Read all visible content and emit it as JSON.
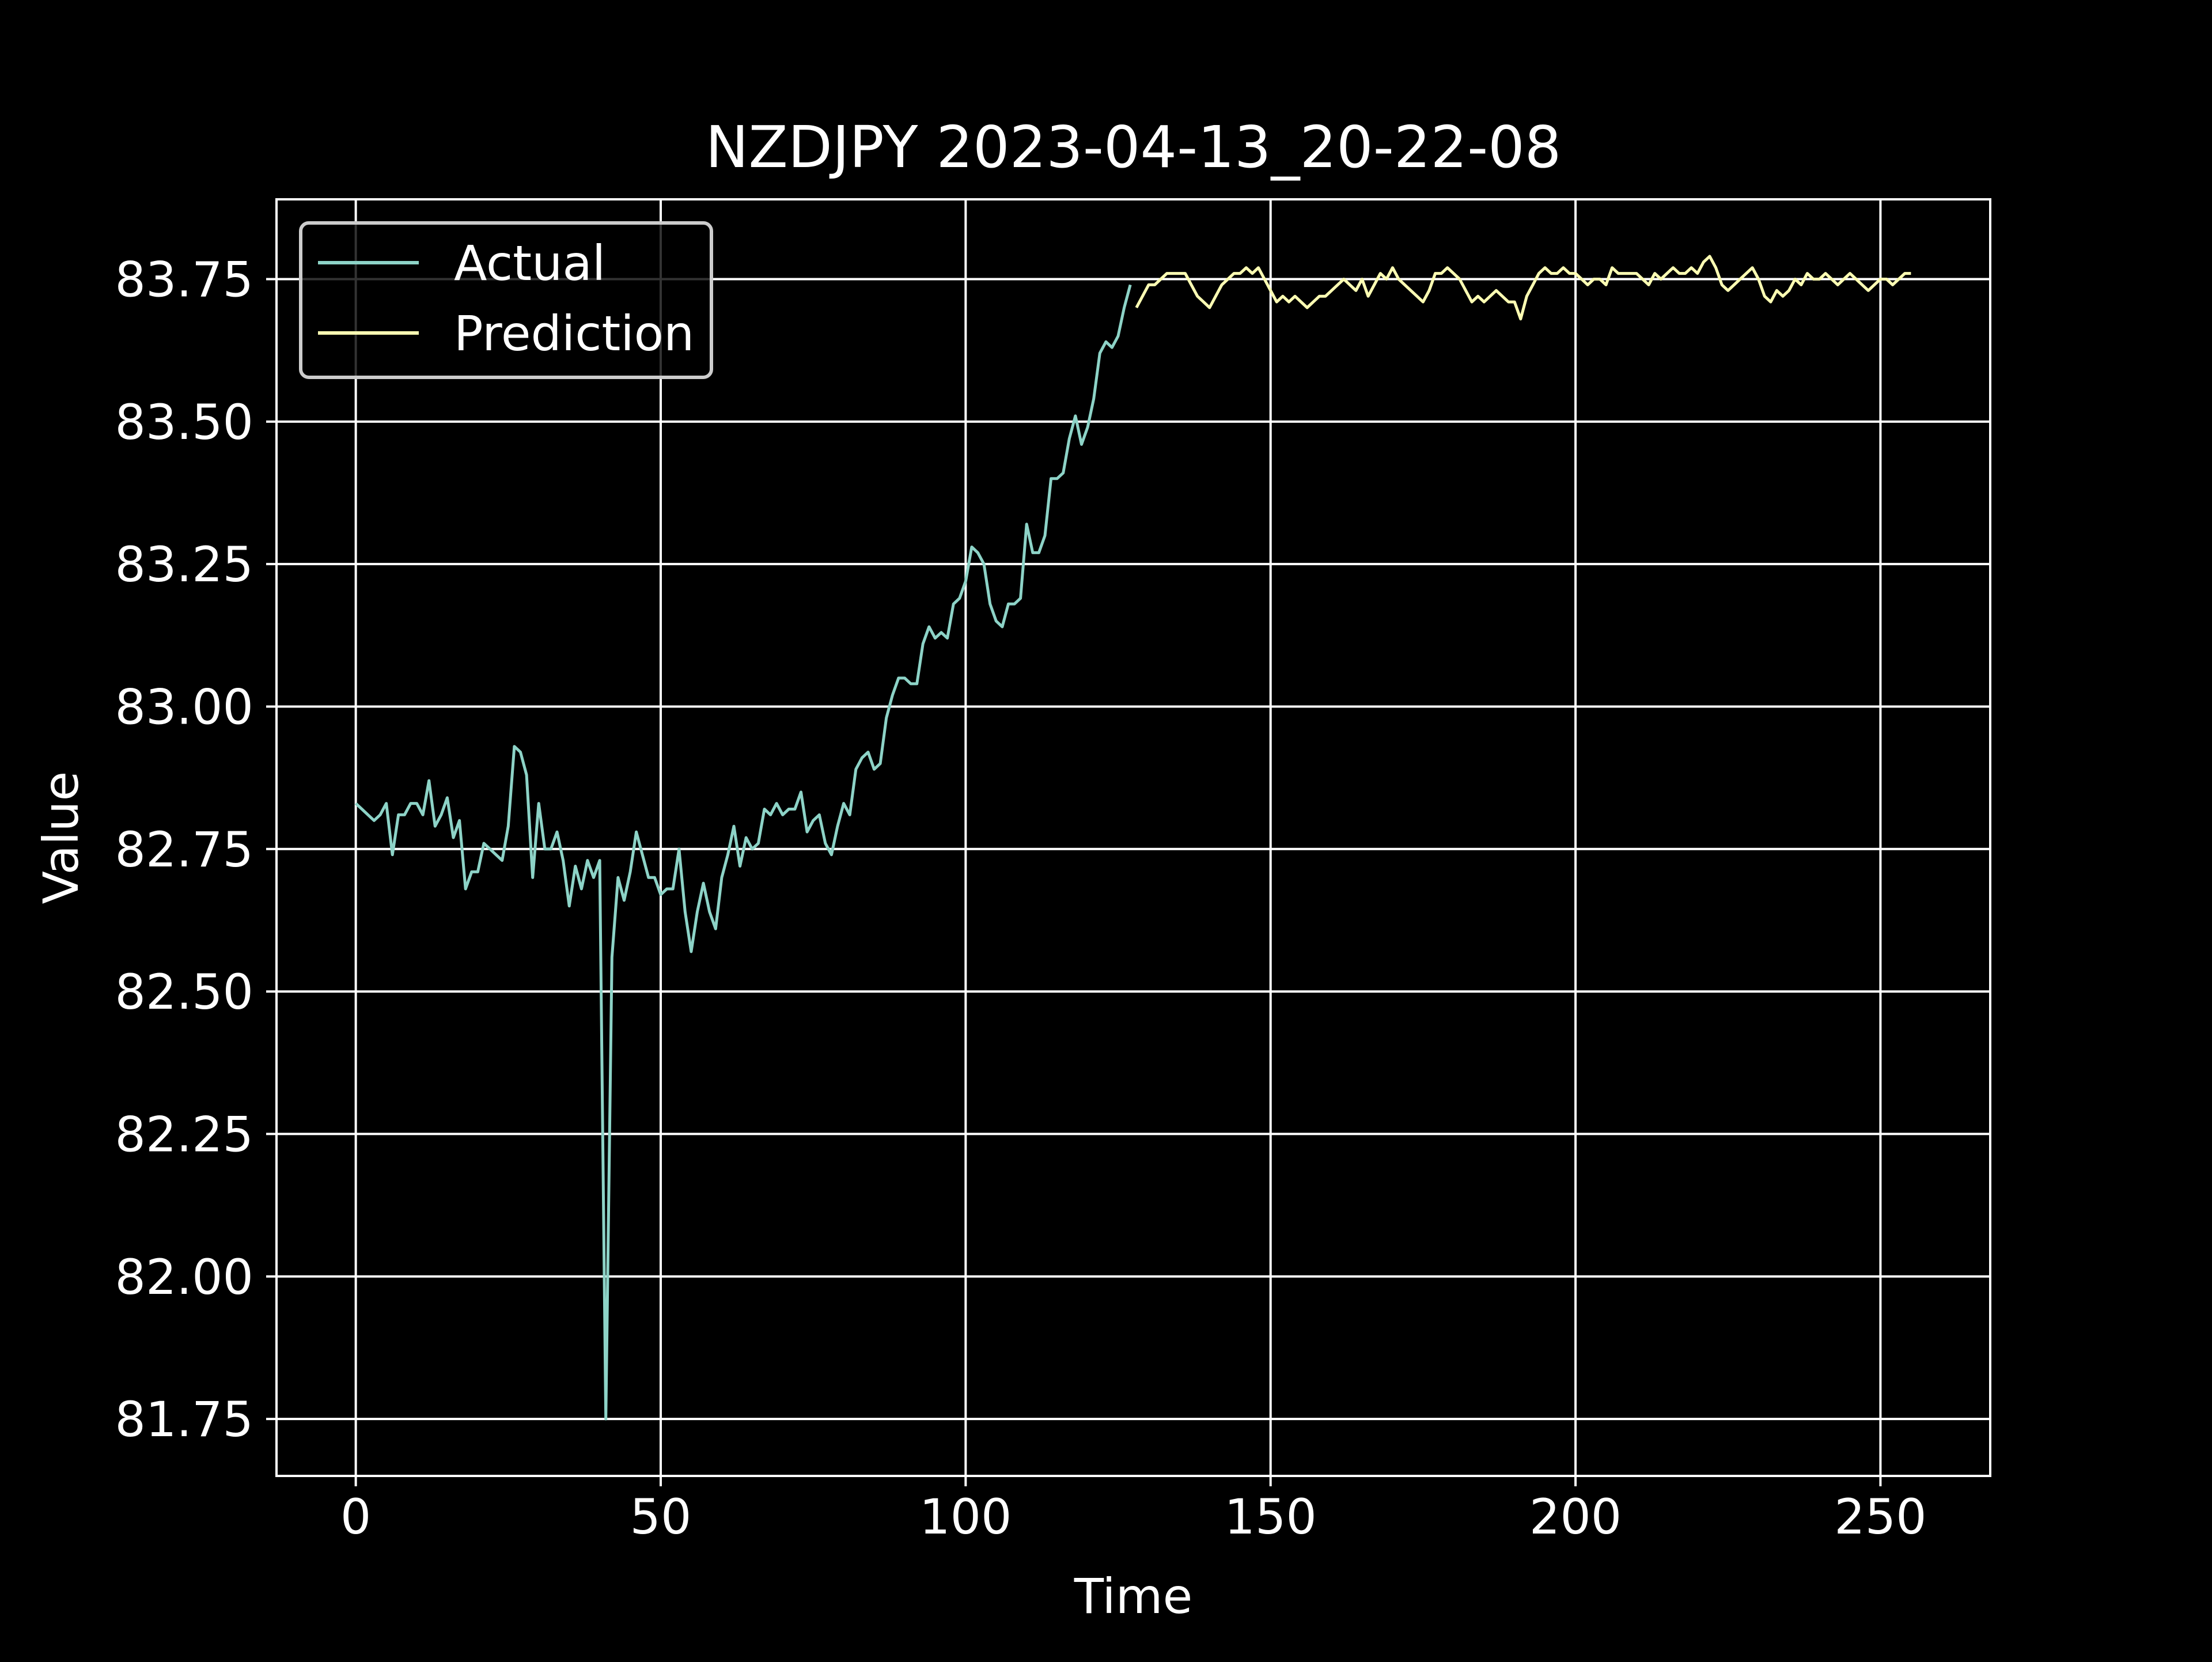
{
  "chart_data": {
    "type": "line",
    "title": "NZDJPY 2023-04-13_20-22-08",
    "xlabel": "Time",
    "ylabel": "Value",
    "xlim": [
      -13,
      268
    ],
    "ylim": [
      81.65,
      83.89
    ],
    "xticks": [
      0,
      50,
      100,
      150,
      200,
      250
    ],
    "xtick_labels": [
      "0",
      "50",
      "100",
      "150",
      "200",
      "250"
    ],
    "yticks": [
      81.75,
      82.0,
      82.25,
      82.5,
      82.75,
      83.0,
      83.25,
      83.5,
      83.75
    ],
    "ytick_labels": [
      "81.75",
      "82.00",
      "82.25",
      "82.50",
      "82.75",
      "83.00",
      "83.25",
      "83.50",
      "83.75"
    ],
    "grid": true,
    "legend_position": "top-left",
    "colors": {
      "background": "#000000",
      "foreground": "#ffffff",
      "actual": "#8dd3c7",
      "prediction": "#feffb3"
    },
    "series": [
      {
        "name": "Actual",
        "x_start": 0,
        "values": [
          82.83,
          82.82,
          82.81,
          82.8,
          82.81,
          82.83,
          82.74,
          82.81,
          82.81,
          82.83,
          82.83,
          82.81,
          82.87,
          82.79,
          82.81,
          82.84,
          82.77,
          82.8,
          82.68,
          82.71,
          82.71,
          82.76,
          82.75,
          82.74,
          82.73,
          82.79,
          82.93,
          82.92,
          82.88,
          82.7,
          82.83,
          82.75,
          82.75,
          82.78,
          82.73,
          82.65,
          82.72,
          82.68,
          82.73,
          82.7,
          82.73,
          81.75,
          82.56,
          82.7,
          82.66,
          82.71,
          82.78,
          82.74,
          82.7,
          82.7,
          82.67,
          82.68,
          82.68,
          82.75,
          82.64,
          82.57,
          82.64,
          82.69,
          82.64,
          82.61,
          82.7,
          82.74,
          82.79,
          82.72,
          82.77,
          82.75,
          82.76,
          82.82,
          82.81,
          82.83,
          82.81,
          82.82,
          82.82,
          82.85,
          82.78,
          82.8,
          82.81,
          82.76,
          82.74,
          82.79,
          82.83,
          82.81,
          82.89,
          82.91,
          82.92,
          82.89,
          82.9,
          82.98,
          83.02,
          83.05,
          83.05,
          83.04,
          83.04,
          83.11,
          83.14,
          83.12,
          83.13,
          83.12,
          83.18,
          83.19,
          83.22,
          83.28,
          83.27,
          83.25,
          83.18,
          83.15,
          83.14,
          83.18,
          83.18,
          83.19,
          83.32,
          83.27,
          83.27,
          83.3,
          83.4,
          83.4,
          83.41,
          83.47,
          83.51,
          83.46,
          83.49,
          83.54,
          83.62,
          83.64,
          83.63,
          83.65,
          83.7,
          83.74
        ]
      },
      {
        "name": "Prediction",
        "x_start": 128,
        "values": [
          83.7,
          83.72,
          83.74,
          83.74,
          83.75,
          83.76,
          83.76,
          83.76,
          83.76,
          83.74,
          83.72,
          83.71,
          83.7,
          83.72,
          83.74,
          83.75,
          83.76,
          83.76,
          83.77,
          83.76,
          83.77,
          83.75,
          83.73,
          83.71,
          83.72,
          83.71,
          83.72,
          83.71,
          83.7,
          83.71,
          83.72,
          83.72,
          83.73,
          83.74,
          83.75,
          83.74,
          83.73,
          83.75,
          83.72,
          83.74,
          83.76,
          83.75,
          83.77,
          83.75,
          83.74,
          83.73,
          83.72,
          83.71,
          83.73,
          83.76,
          83.76,
          83.77,
          83.76,
          83.75,
          83.73,
          83.71,
          83.72,
          83.71,
          83.72,
          83.73,
          83.72,
          83.71,
          83.71,
          83.68,
          83.72,
          83.74,
          83.76,
          83.77,
          83.76,
          83.76,
          83.77,
          83.76,
          83.76,
          83.75,
          83.74,
          83.75,
          83.75,
          83.74,
          83.77,
          83.76,
          83.76,
          83.76,
          83.76,
          83.75,
          83.74,
          83.76,
          83.75,
          83.76,
          83.77,
          83.76,
          83.76,
          83.77,
          83.76,
          83.78,
          83.79,
          83.77,
          83.74,
          83.73,
          83.74,
          83.75,
          83.76,
          83.77,
          83.75,
          83.72,
          83.71,
          83.73,
          83.72,
          83.73,
          83.75,
          83.74,
          83.76,
          83.75,
          83.75,
          83.76,
          83.75,
          83.74,
          83.75,
          83.76,
          83.75,
          83.74,
          83.73,
          83.74,
          83.75,
          83.75,
          83.74,
          83.75,
          83.76,
          83.76
        ]
      }
    ]
  }
}
